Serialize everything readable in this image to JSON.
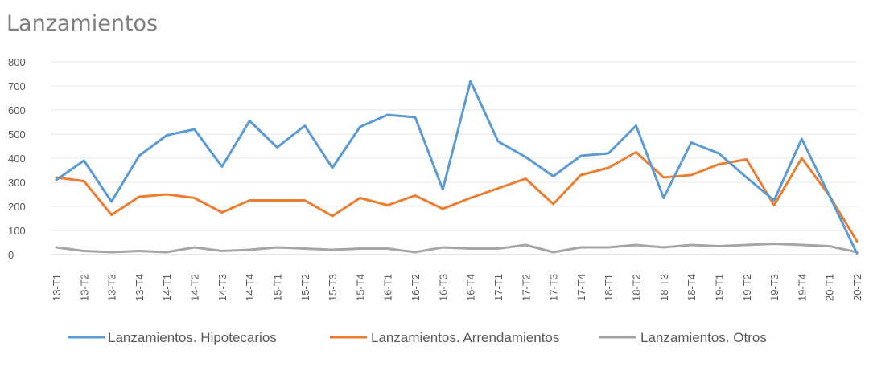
{
  "chart_data": {
    "type": "line",
    "title": "Lanzamientos",
    "xlabel": "",
    "ylabel": "",
    "ylim": [
      0,
      800
    ],
    "yticks": [
      0,
      100,
      200,
      300,
      400,
      500,
      600,
      700,
      800
    ],
    "grid": true,
    "legend_position": "bottom",
    "categories": [
      "13-T1",
      "13-T2",
      "13-T3",
      "13-T4",
      "14-T1",
      "14-T2",
      "14-T3",
      "14-T4",
      "15-T1",
      "15-T2",
      "15-T3",
      "15-T4",
      "16-T1",
      "16-T2",
      "16-T3",
      "16-T4",
      "17-T1",
      "17-T2",
      "17-T3",
      "17-T4",
      "18-T1",
      "18-T2",
      "18-T3",
      "18-T4",
      "19-T1",
      "19-T2",
      "19-T3",
      "19-T4",
      "20-T1",
      "20-T2"
    ],
    "series": [
      {
        "name": "Lanzamientos. Hipotecarios",
        "color": "#5b9bd5",
        "values": [
          310,
          390,
          220,
          410,
          495,
          520,
          365,
          555,
          445,
          535,
          360,
          530,
          580,
          570,
          270,
          720,
          470,
          405,
          325,
          410,
          420,
          535,
          235,
          465,
          420,
          320,
          225,
          480,
          245,
          5
        ]
      },
      {
        "name": "Lanzamientos. Arrendamientos",
        "color": "#ed7d31",
        "values": [
          320,
          305,
          165,
          240,
          250,
          235,
          175,
          225,
          225,
          225,
          160,
          235,
          205,
          245,
          190,
          235,
          275,
          315,
          210,
          330,
          360,
          425,
          320,
          330,
          375,
          395,
          205,
          400,
          245,
          55
        ]
      },
      {
        "name": "Lanzamientos. Otros",
        "color": "#a5a5a5",
        "values": [
          30,
          15,
          10,
          15,
          10,
          30,
          15,
          20,
          30,
          25,
          20,
          25,
          25,
          10,
          30,
          25,
          25,
          40,
          10,
          30,
          30,
          40,
          30,
          40,
          35,
          40,
          45,
          40,
          35,
          10
        ]
      }
    ]
  }
}
